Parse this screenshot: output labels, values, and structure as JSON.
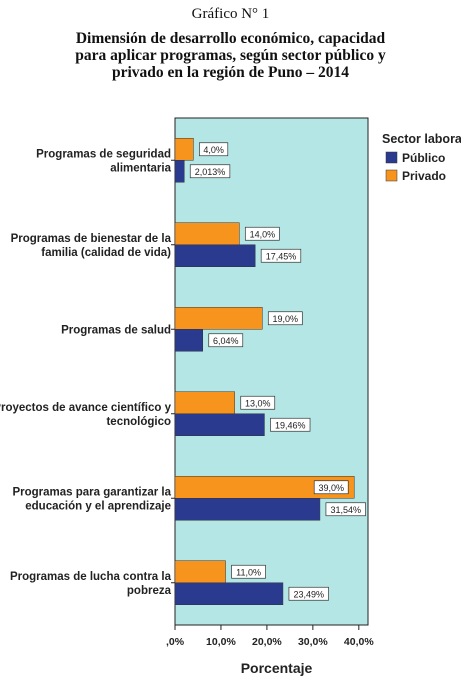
{
  "figure_label": "Gráfico N° 1",
  "title_lines": [
    "Dimensión de desarrollo económico, capacidad",
    "para aplicar programas, según sector público y",
    "privado en la región de Puno – 2014"
  ],
  "colors": {
    "plot_bg": "#b4e6e6",
    "publico": "#2a3b8f",
    "privado": "#f7941d"
  },
  "chart_data": {
    "type": "bar",
    "orientation": "horizontal",
    "title": "Dimensión de desarrollo económico, capacidad para aplicar programas, según sector público y privado en la región de Puno – 2014",
    "xlabel": "Porcentaje",
    "ylabel": "",
    "xlim": [
      0,
      42
    ],
    "xticks": [
      0,
      10,
      20,
      30,
      40
    ],
    "xtick_labels": [
      ",0%",
      "10,0%",
      "20,0%",
      "30,0%",
      "40,0%"
    ],
    "legend_title": "Sector laboral",
    "legend_position": "right",
    "categories": [
      [
        "Programas de seguridad",
        "alimentaria"
      ],
      [
        "Programas de bienestar de la",
        "familia (calidad de vida)"
      ],
      [
        "Programas de salud"
      ],
      [
        "Proyectos de avance científico y",
        "tecnológico"
      ],
      [
        "Programas para garantizar la",
        "educación y el aprendizaje"
      ],
      [
        "Programas de lucha contra la",
        "pobreza"
      ]
    ],
    "series": [
      {
        "name": "Privado",
        "color": "#f7941d",
        "values": [
          4.0,
          14.0,
          19.0,
          13.0,
          39.0,
          11.0
        ],
        "labels": [
          "4,0%",
          "14,0%",
          "19,0%",
          "13,0%",
          "39,0%",
          "11,0%"
        ]
      },
      {
        "name": "Público",
        "color": "#2a3b8f",
        "values": [
          2.013,
          17.45,
          6.04,
          19.46,
          31.54,
          23.49
        ],
        "labels": [
          "2,013%",
          "17,45%",
          "6,04%",
          "19,46%",
          "31,54%",
          "23,49%"
        ]
      }
    ],
    "legend_order": [
      "Público",
      "Privado"
    ],
    "grid": false
  }
}
